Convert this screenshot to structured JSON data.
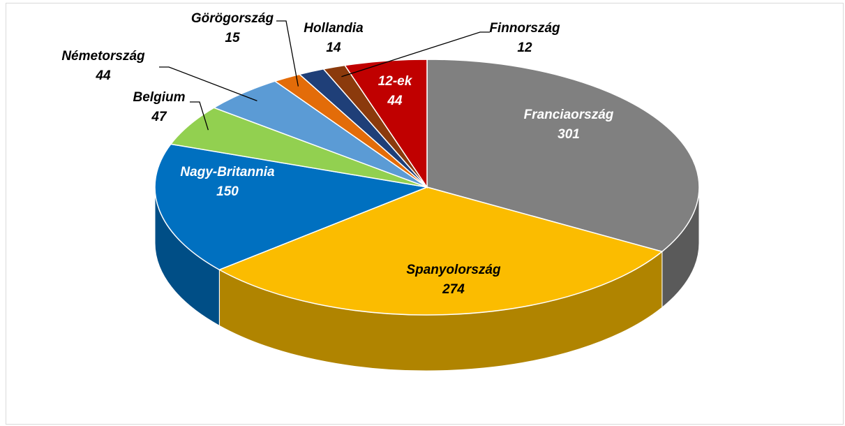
{
  "chart_data": {
    "type": "pie",
    "categories": [
      "Franciaország",
      "Spanyolország",
      "Nagy-Britannia",
      "Belgium",
      "Németország",
      "Görögország",
      "Hollandia",
      "Finnország",
      "12-ek"
    ],
    "values": [
      301,
      274,
      150,
      47,
      44,
      15,
      14,
      12,
      44
    ],
    "colors": [
      "#808080",
      "#fbbc00",
      "#0070c0",
      "#92d050",
      "#5b9bd5",
      "#e36c09",
      "#1f3f78",
      "#8b3a0c",
      "#c00000"
    ]
  }
}
